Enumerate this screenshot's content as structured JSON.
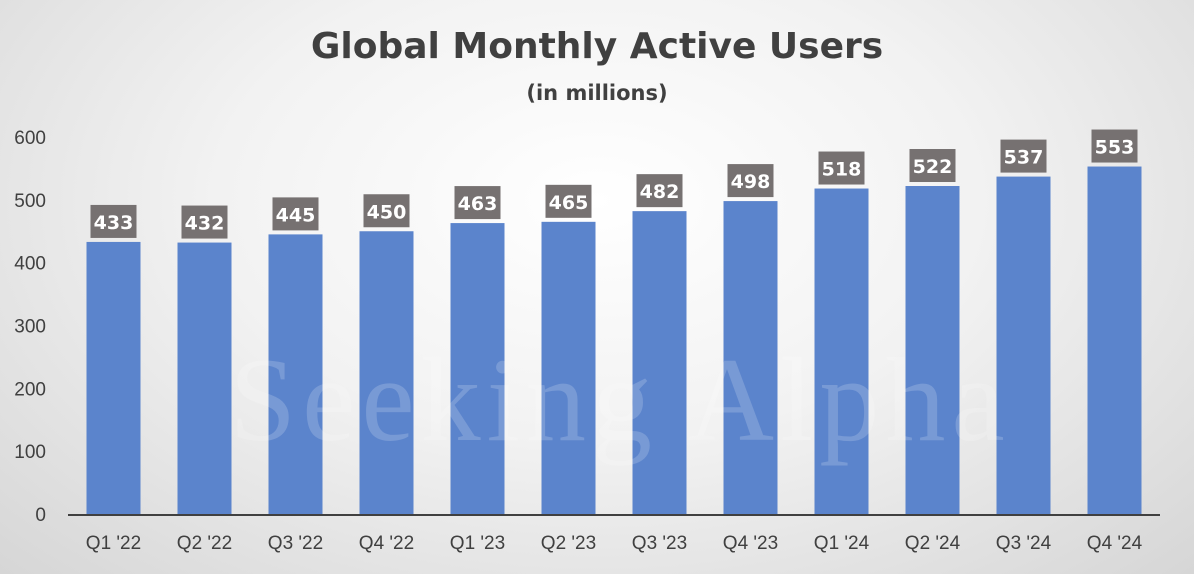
{
  "chart_data": {
    "type": "bar",
    "title": "Global Monthly Active Users",
    "subtitle": "(in millions)",
    "xlabel": "",
    "ylabel": "",
    "ylim": [
      0,
      600
    ],
    "yticks": [
      0,
      100,
      200,
      300,
      400,
      500,
      600
    ],
    "grid": false,
    "legend": "none",
    "categories": [
      "Q1 '22",
      "Q2 '22",
      "Q3 '22",
      "Q4 '22",
      "Q1 '23",
      "Q2 '23",
      "Q3 '23",
      "Q4 '23",
      "Q1 '24",
      "Q2 '24",
      "Q3 '24",
      "Q4 '24"
    ],
    "values": [
      433,
      432,
      445,
      450,
      463,
      465,
      482,
      498,
      518,
      522,
      537,
      553
    ],
    "watermark": "Seeking Alpha",
    "colors": {
      "bar": "#5b84cc",
      "label_bg": "#767171",
      "axis": "#404040"
    }
  }
}
